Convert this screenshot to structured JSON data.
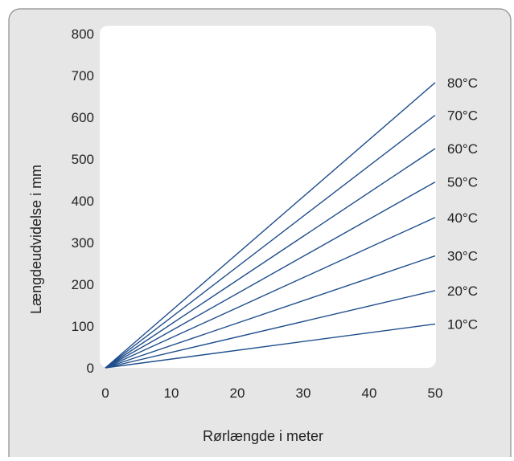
{
  "chart_data": {
    "type": "line",
    "xlabel": "Rørlængde i meter",
    "ylabel": "Længdeudvidelse i mm",
    "xlim": [
      0,
      50
    ],
    "ylim": [
      0,
      800
    ],
    "x_ticks": [
      "0",
      "10",
      "20",
      "30",
      "40",
      "50"
    ],
    "y_ticks": [
      "0",
      "100",
      "200",
      "300",
      "400",
      "500",
      "600",
      "700",
      "800"
    ],
    "grid": false,
    "line_color": "#1f4e8c",
    "plot_background": "#ffffff",
    "panel_background": "#e6e6e6",
    "series": [
      {
        "name": "10°C",
        "x": [
          0,
          50
        ],
        "y": [
          0,
          105
        ]
      },
      {
        "name": "20°C",
        "x": [
          0,
          50
        ],
        "y": [
          0,
          185
        ]
      },
      {
        "name": "30°C",
        "x": [
          0,
          50
        ],
        "y": [
          0,
          268
        ]
      },
      {
        "name": "40°C",
        "x": [
          0,
          50
        ],
        "y": [
          0,
          360
        ]
      },
      {
        "name": "50°C",
        "x": [
          0,
          50
        ],
        "y": [
          0,
          445
        ]
      },
      {
        "name": "60°C",
        "x": [
          0,
          50
        ],
        "y": [
          0,
          525
        ]
      },
      {
        "name": "70°C",
        "x": [
          0,
          50
        ],
        "y": [
          0,
          605
        ]
      },
      {
        "name": "80°C",
        "x": [
          0,
          50
        ],
        "y": [
          0,
          683
        ]
      }
    ],
    "legend": "right-of-lines"
  }
}
